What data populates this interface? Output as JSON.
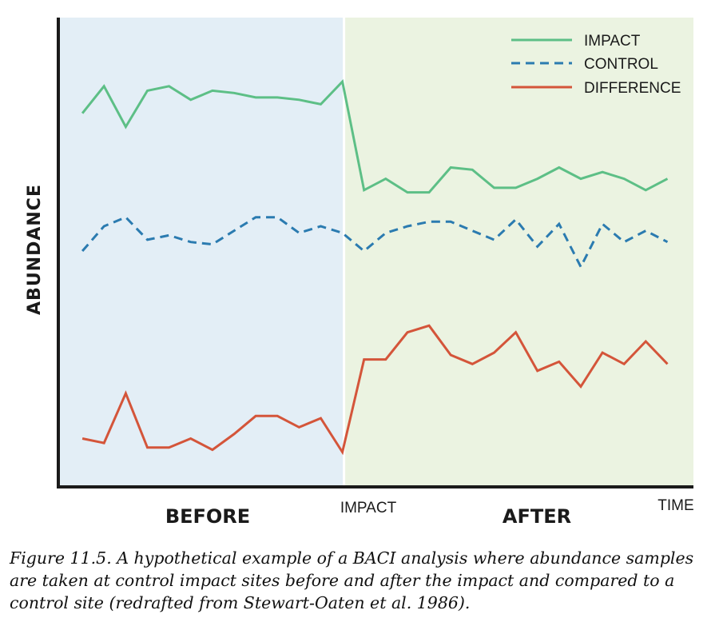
{
  "chart_data": {
    "type": "line",
    "ylabel": "ABUNDANCE",
    "xlabel": "TIME",
    "phases": [
      {
        "label": "BEFORE",
        "color": "#e3eef6"
      },
      {
        "label": "AFTER",
        "color": "#ebf3e1"
      }
    ],
    "impact_marker_label": "IMPACT",
    "x": [
      1,
      2,
      3,
      4,
      5,
      6,
      7,
      8,
      9,
      10,
      11,
      12,
      13,
      14,
      15,
      16,
      17,
      18,
      19,
      20,
      21,
      22,
      23,
      24,
      25,
      26,
      27,
      28
    ],
    "impact_x": 13,
    "xlim": [
      0,
      29.2
    ],
    "ylim": [
      0,
      100
    ],
    "legend_position": "top-right",
    "grid": false,
    "series": [
      {
        "name": "IMPACT",
        "style": "solid",
        "color": "#5dbf86",
        "values": [
          82,
          88,
          79,
          87,
          88,
          85,
          87,
          86.5,
          85.5,
          85.5,
          85,
          84,
          89,
          65,
          67.5,
          64.5,
          64.5,
          70,
          69.5,
          65.5,
          65.5,
          67.5,
          70,
          67.5,
          69,
          67.5,
          65,
          67.5
        ]
      },
      {
        "name": "CONTROL",
        "style": "dashed",
        "color": "#2b7bb0",
        "values": [
          51.5,
          57,
          59,
          54,
          55,
          53.5,
          53,
          56,
          59,
          59,
          55.5,
          57,
          55.5,
          51.5,
          55.5,
          57,
          58,
          58,
          56,
          54,
          58.5,
          52.5,
          57.5,
          48,
          57.5,
          53.5,
          56,
          53.5
        ]
      },
      {
        "name": "DIFFERENCE",
        "style": "solid",
        "color": "#d4553a",
        "values": [
          10,
          9,
          20,
          8,
          8,
          10,
          7.5,
          11,
          15,
          15,
          12.5,
          14.5,
          7,
          27.5,
          27.5,
          33.5,
          35,
          28.5,
          26.5,
          29,
          33.5,
          25,
          27,
          21.5,
          29,
          26.5,
          31.5,
          26.5
        ]
      }
    ]
  },
  "caption": "Figure 11.5. A hypothetical example of a BACI analysis where abundance samples are taken at control impact sites before and after the impact and compared to a control site (redrafted from Stewart-Oaten et al. 1986)."
}
